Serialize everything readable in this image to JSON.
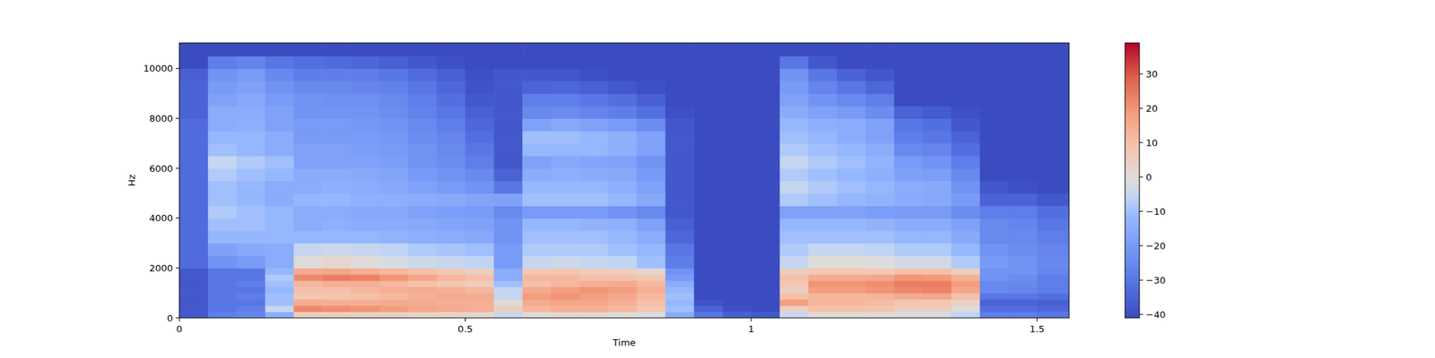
{
  "chart_data": {
    "type": "heatmap",
    "x_label": "Time",
    "y_label": "Hz",
    "color": "coolwarm",
    "xlim": [
      0,
      1.556
    ],
    "xticks": [
      0,
      0.5,
      1,
      1.5
    ],
    "ylim": [
      0,
      11025
    ],
    "yticks": [
      0,
      2000,
      4000,
      6000,
      8000,
      10000
    ],
    "x_edges": [
      0,
      0.05,
      0.1,
      0.15,
      0.2,
      0.25,
      0.3,
      0.35,
      0.4,
      0.45,
      0.5,
      0.55,
      0.6,
      0.65,
      0.7,
      0.75,
      0.8,
      0.85,
      0.9,
      0.95,
      1,
      1.05,
      1.1,
      1.15,
      1.2,
      1.25,
      1.3,
      1.35,
      1.4,
      1.45,
      1.5,
      1.556
    ],
    "y_edges": [
      0,
      250,
      500,
      750,
      1000,
      1250,
      1500,
      1750,
      2000,
      2500,
      3000,
      3500,
      4000,
      4500,
      5000,
      5500,
      6000,
      6500,
      7000,
      7500,
      8000,
      8500,
      9000,
      9500,
      10000,
      10500,
      11000,
      11025
    ],
    "values": [
      [
        -38,
        -38,
        -38,
        -38,
        -38,
        -38,
        -38,
        -38,
        -33,
        -33,
        -33,
        -33,
        -33,
        -33,
        -33,
        -33,
        -33,
        -33,
        -33,
        -33,
        -35,
        -35,
        -35,
        -36,
        -41,
        -41,
        -41
      ],
      [
        -28,
        -30,
        -30,
        -30,
        -30,
        -30,
        -30,
        -30,
        -22,
        -18,
        -12,
        -10,
        -8,
        -10,
        -10,
        -8,
        -5,
        -10,
        -12,
        -15,
        -15,
        -18,
        -20,
        -22,
        -28,
        -41,
        -41
      ],
      [
        -26,
        -28,
        -30,
        -28,
        -30,
        -28,
        -30,
        -30,
        -20,
        -16,
        -12,
        -10,
        -10,
        -12,
        -12,
        -10,
        -8,
        -12,
        -12,
        -14,
        -15,
        -16,
        -18,
        -20,
        -26,
        -41,
        -41
      ],
      [
        -15,
        -5,
        -10,
        -10,
        -12,
        -10,
        -8,
        -12,
        -15,
        -15,
        -12,
        -12,
        -12,
        -15,
        -15,
        -12,
        -10,
        -15,
        -15,
        -18,
        -18,
        -20,
        -22,
        -25,
        -30,
        -41,
        -41
      ],
      [
        5,
        22,
        15,
        8,
        10,
        12,
        22,
        15,
        0,
        -5,
        -12,
        -15,
        -15,
        -12,
        -15,
        -15,
        -18,
        -18,
        -20,
        -20,
        -22,
        -22,
        -25,
        -28,
        -32,
        -41,
        -41
      ],
      [
        5,
        21,
        14,
        9,
        10,
        14,
        24,
        16,
        2,
        -4,
        -12,
        -14,
        -15,
        -12,
        -14,
        -15,
        -18,
        -18,
        -20,
        -20,
        -22,
        -23,
        -25,
        -28,
        -33,
        -41,
        -41
      ],
      [
        4,
        20,
        14,
        10,
        12,
        14,
        23,
        14,
        0,
        -5,
        -12,
        -15,
        -16,
        -14,
        -15,
        -16,
        -18,
        -19,
        -20,
        -21,
        -22,
        -23,
        -26,
        -28,
        -34,
        -41,
        -41
      ],
      [
        4,
        18,
        15,
        12,
        14,
        12,
        20,
        12,
        -2,
        -6,
        -13,
        -15,
        -16,
        -14,
        -16,
        -17,
        -19,
        -20,
        -21,
        -22,
        -24,
        -25,
        -27,
        -30,
        -36,
        -41,
        -41
      ],
      [
        3,
        16,
        15,
        14,
        15,
        10,
        16,
        10,
        -4,
        -8,
        -14,
        -16,
        -18,
        -15,
        -18,
        -20,
        -22,
        -22,
        -24,
        -25,
        -27,
        -28,
        -30,
        -33,
        -38,
        -41,
        -41
      ],
      [
        3,
        15,
        14,
        15,
        14,
        8,
        12,
        8,
        -5,
        -9,
        -15,
        -17,
        -19,
        -16,
        -20,
        -22,
        -24,
        -25,
        -26,
        -28,
        -30,
        -32,
        -34,
        -36,
        -40,
        -41,
        -41
      ],
      [
        2,
        14,
        14,
        15,
        12,
        6,
        10,
        5,
        -6,
        -10,
        -16,
        -18,
        -20,
        -17,
        -22,
        -25,
        -28,
        -30,
        -32,
        -34,
        -36,
        -38,
        -39,
        -40,
        -41,
        -41,
        -41
      ],
      [
        -5,
        5,
        0,
        -5,
        -5,
        -10,
        -15,
        -15,
        -20,
        -20,
        -22,
        -22,
        -25,
        -18,
        -30,
        -35,
        -38,
        -38,
        -38,
        -38,
        -38,
        -38,
        -38,
        -38,
        -41,
        -41,
        -41
      ],
      [
        0,
        12,
        15,
        18,
        15,
        10,
        12,
        8,
        -5,
        -8,
        -10,
        -12,
        -20,
        -10,
        -12,
        -15,
        -18,
        -12,
        -10,
        -18,
        -25,
        -28,
        -35,
        -38,
        -41,
        -41,
        -41
      ],
      [
        2,
        14,
        16,
        20,
        18,
        12,
        12,
        8,
        -4,
        -8,
        -10,
        -12,
        -20,
        -10,
        -12,
        -14,
        -16,
        -12,
        -10,
        -16,
        -24,
        -28,
        -34,
        -38,
        -41,
        -41,
        -41
      ],
      [
        2,
        14,
        16,
        18,
        20,
        14,
        10,
        6,
        -5,
        -8,
        -10,
        -13,
        -20,
        -10,
        -12,
        -15,
        -17,
        -12,
        -12,
        -18,
        -26,
        -30,
        -36,
        -40,
        -41,
        -41,
        -41
      ],
      [
        0,
        12,
        14,
        16,
        18,
        15,
        10,
        5,
        -6,
        -10,
        -12,
        -14,
        -22,
        -12,
        -14,
        -16,
        -18,
        -14,
        -14,
        -20,
        -28,
        -32,
        -38,
        -41,
        -41,
        -41,
        -41
      ],
      [
        -2,
        8,
        10,
        12,
        14,
        12,
        8,
        2,
        -10,
        -12,
        -15,
        -18,
        -25,
        -16,
        -18,
        -20,
        -22,
        -18,
        -18,
        -24,
        -32,
        -36,
        -40,
        -41,
        -41,
        -41,
        -41
      ],
      [
        -15,
        -10,
        -12,
        -10,
        -12,
        -15,
        -20,
        -22,
        -28,
        -30,
        -34,
        -36,
        -38,
        -38,
        -38,
        -38,
        -38,
        -38,
        -38,
        -38,
        -40,
        -41,
        -41,
        -41,
        -41,
        -41,
        -41
      ],
      [
        -30,
        -35,
        -39,
        -41,
        -41,
        -41,
        -41,
        -41,
        -41,
        -41,
        -41,
        -41,
        -41,
        -41,
        -41,
        -41,
        -41,
        -41,
        -41,
        -41,
        -41,
        -41,
        -41,
        -41,
        -41,
        -41,
        -41
      ],
      [
        -36,
        -40,
        -41,
        -41,
        -41,
        -41,
        -41,
        -41,
        -41,
        -41,
        -41,
        -41,
        -41,
        -41,
        -41,
        -41,
        -41,
        -41,
        -41,
        -41,
        -41,
        -41,
        -41,
        -41,
        -41,
        -41,
        -41
      ],
      [
        -38,
        -41,
        -41,
        -41,
        -41,
        -41,
        -41,
        -41,
        -41,
        -41,
        -41,
        -41,
        -41,
        -41,
        -41,
        -41,
        -41,
        -41,
        -41,
        -41,
        -41,
        -41,
        -41,
        -41,
        -41,
        -41,
        -41
      ],
      [
        -5,
        5,
        18,
        10,
        5,
        8,
        10,
        5,
        -5,
        -8,
        -10,
        -12,
        -18,
        -8,
        -5,
        -8,
        -5,
        -8,
        -10,
        -12,
        -15,
        -18,
        -20,
        -22,
        -30,
        -41,
        -41
      ],
      [
        0,
        10,
        12,
        12,
        18,
        20,
        15,
        8,
        0,
        -5,
        -10,
        -12,
        -18,
        -10,
        -8,
        -10,
        -8,
        -10,
        -12,
        -14,
        -18,
        -22,
        -26,
        -30,
        -38,
        -41,
        -41
      ],
      [
        0,
        10,
        12,
        12,
        18,
        20,
        15,
        8,
        0,
        -5,
        -10,
        -12,
        -18,
        -12,
        -10,
        -12,
        -10,
        -12,
        -15,
        -15,
        -20,
        -25,
        -30,
        -35,
        -41,
        -41,
        -41
      ],
      [
        0,
        9,
        11,
        13,
        20,
        21,
        16,
        8,
        -1,
        -6,
        -10,
        -13,
        -19,
        -13,
        -12,
        -14,
        -13,
        -15,
        -18,
        -18,
        -24,
        -28,
        -34,
        -38,
        -41,
        -41,
        -41
      ],
      [
        -2,
        5,
        8,
        15,
        22,
        24,
        20,
        10,
        -3,
        -8,
        -12,
        -15,
        -20,
        -15,
        -15,
        -18,
        -20,
        -25,
        -28,
        -30,
        -35,
        -41,
        -41,
        -41,
        -41,
        -41,
        -41
      ],
      [
        -2,
        5,
        8,
        16,
        23,
        24,
        19,
        10,
        -3,
        -8,
        -12,
        -15,
        -20,
        -16,
        -16,
        -19,
        -22,
        -26,
        -30,
        -32,
        -37,
        -41,
        -41,
        -41,
        -41,
        -41,
        -41
      ],
      [
        -6,
        0,
        4,
        10,
        16,
        18,
        14,
        5,
        -8,
        -12,
        -16,
        -18,
        -24,
        -20,
        -22,
        -25,
        -28,
        -32,
        -35,
        -38,
        -40,
        -41,
        -41,
        -41,
        -41,
        -41,
        -41
      ],
      [
        -28,
        -32,
        -35,
        -30,
        -25,
        -25,
        -22,
        -22,
        -20,
        -22,
        -25,
        -25,
        -28,
        -35,
        -38,
        -41,
        -41,
        -41,
        -41,
        -41,
        -41,
        -41,
        -41,
        -41,
        -41,
        -41,
        -41
      ],
      [
        -28,
        -32,
        -35,
        -30,
        -26,
        -25,
        -24,
        -22,
        -22,
        -24,
        -25,
        -26,
        -28,
        -35,
        -40,
        -41,
        -41,
        -41,
        -41,
        -41,
        -41,
        -41,
        -41,
        -41,
        -41,
        -41,
        -41
      ],
      [
        -30,
        -34,
        -36,
        -32,
        -28,
        -28,
        -28,
        -26,
        -25,
        -26,
        -28,
        -30,
        -32,
        -38,
        -41,
        -41,
        -41,
        -41,
        -41,
        -41,
        -41,
        -41,
        -41,
        -41,
        -41,
        -41,
        -41
      ]
    ],
    "colorbar": {
      "range": [
        -41,
        39
      ],
      "ticks": [
        30,
        20,
        10,
        0,
        {
          "value": -10,
          "label": "−10"
        },
        {
          "value": -20,
          "label": "−20"
        },
        {
          "value": -30,
          "label": "−30"
        },
        {
          "value": -40,
          "label": "−40"
        }
      ]
    }
  }
}
